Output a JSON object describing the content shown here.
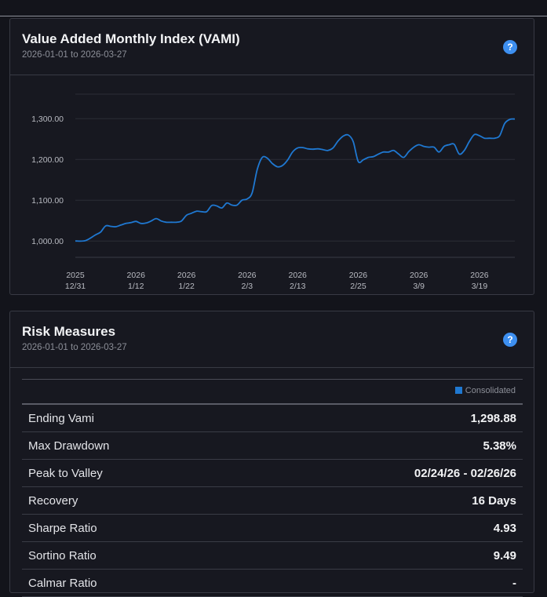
{
  "vami": {
    "title": "Value Added Monthly Index (VAMI)",
    "date_range": "2026-01-01 to 2026-03-27",
    "help": "?"
  },
  "chart_data": {
    "type": "line",
    "title": "Value Added Monthly Index (VAMI)",
    "xlabel": "",
    "ylabel": "",
    "ylim": [
      960,
      1360
    ],
    "xlim": [
      0,
      87
    ],
    "grid": true,
    "yticks": [
      1000,
      1100,
      1200,
      1300
    ],
    "ytick_labels": [
      "1,000.00",
      "1,100.00",
      "1,200.00",
      "1,300.00"
    ],
    "xticks": [
      0,
      12,
      22,
      34,
      44,
      56,
      68,
      80
    ],
    "xtick_labels": [
      [
        "2025",
        "12/31"
      ],
      [
        "2026",
        "1/12"
      ],
      [
        "2026",
        "1/22"
      ],
      [
        "2026",
        "2/3"
      ],
      [
        "2026",
        "2/13"
      ],
      [
        "2026",
        "2/25"
      ],
      [
        "2026",
        "3/9"
      ],
      [
        "2026",
        "3/19"
      ]
    ],
    "line_color": "#1f78d1",
    "series": [
      {
        "name": "Consolidated",
        "x": [
          0,
          2,
          4,
          5,
          6,
          7,
          8,
          9,
          10,
          11,
          12,
          13,
          14,
          15,
          16,
          17,
          18,
          19,
          20,
          21,
          22,
          23,
          24,
          25,
          26,
          27,
          28,
          29,
          30,
          31,
          32,
          33,
          34,
          35,
          36,
          37,
          38,
          39,
          40,
          41,
          42,
          43,
          44,
          45,
          46,
          47,
          48,
          49,
          50,
          51,
          52,
          53,
          54,
          55,
          56,
          57,
          58,
          59,
          60,
          61,
          62,
          63,
          64,
          65,
          66,
          67,
          68,
          69,
          70,
          71,
          72,
          73,
          74,
          75,
          76,
          77,
          78,
          79,
          80,
          81,
          82,
          83,
          84,
          85,
          86,
          87
        ],
        "values": [
          1000,
          1001,
          1015,
          1022,
          1037,
          1036,
          1035,
          1039,
          1043,
          1045,
          1048,
          1043,
          1044,
          1049,
          1055,
          1049,
          1046,
          1046,
          1046,
          1049,
          1063,
          1068,
          1073,
          1072,
          1072,
          1087,
          1086,
          1081,
          1093,
          1088,
          1088,
          1100,
          1103,
          1118,
          1175,
          1205,
          1203,
          1190,
          1182,
          1185,
          1198,
          1218,
          1228,
          1229,
          1226,
          1225,
          1226,
          1224,
          1222,
          1228,
          1245,
          1257,
          1260,
          1244,
          1195,
          1199,
          1205,
          1207,
          1213,
          1218,
          1218,
          1222,
          1213,
          1205,
          1219,
          1230,
          1236,
          1232,
          1230,
          1230,
          1218,
          1232,
          1236,
          1237,
          1213,
          1222,
          1244,
          1261,
          1258,
          1252,
          1252,
          1252,
          1258,
          1288,
          1298,
          1299
        ]
      }
    ]
  },
  "risk": {
    "title": "Risk Measures",
    "date_range": "2026-01-01 to 2026-03-27",
    "help": "?",
    "legend": "Consolidated",
    "legend_color": "#1f78d1",
    "rows": [
      {
        "label": "Ending Vami",
        "value": "1,298.88"
      },
      {
        "label": "Max Drawdown",
        "value": "5.38%"
      },
      {
        "label": "Peak to Valley",
        "value": "02/24/26 - 02/26/26"
      },
      {
        "label": "Recovery",
        "value": "16 Days"
      },
      {
        "label": "Sharpe Ratio",
        "value": "4.93"
      },
      {
        "label": "Sortino Ratio",
        "value": "9.49"
      },
      {
        "label": "Calmar Ratio",
        "value": "-"
      }
    ]
  }
}
